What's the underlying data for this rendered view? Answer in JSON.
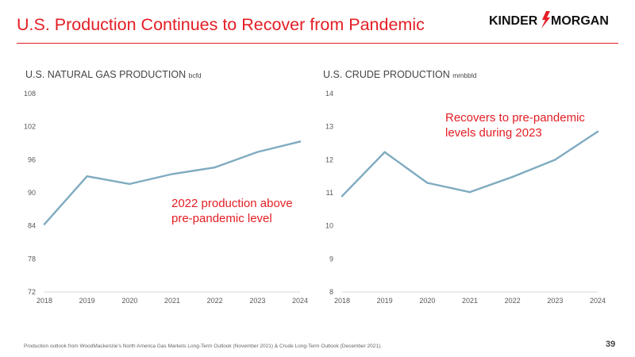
{
  "slide": {
    "title": "U.S. Production Continues to Recover from Pandemic",
    "logo_left": "KINDER",
    "logo_right": "MORGAN",
    "footnote": "Production outlook from WoodMackenzie’s North America Gas Markets Long-Term Outlook (November 2021) & Crude Long-Term Outlook (December 2021).",
    "page_number": "39",
    "accent_color": "#e31e24",
    "line_color": "#7fabc0"
  },
  "chart_data": [
    {
      "type": "line",
      "title": "U.S. NATURAL GAS PRODUCTION",
      "title_unit": "bcfd",
      "x": [
        "2018",
        "2019",
        "2020",
        "2021",
        "2022",
        "2023",
        "2024"
      ],
      "series": [
        {
          "values": [
            84.3,
            93.0,
            91.6,
            93.4,
            94.6,
            97.4,
            99.3
          ]
        }
      ],
      "y_ticks": [
        "72",
        "78",
        "84",
        "90",
        "96",
        "102",
        "108"
      ],
      "ylim": [
        72,
        108
      ],
      "grid": false,
      "annotation": [
        "2022 production above",
        "pre-pandemic level"
      ]
    },
    {
      "type": "line",
      "title": "U.S. CRUDE PRODUCTION",
      "title_unit": "mmbbld",
      "x": [
        "2018",
        "2019",
        "2020",
        "2021",
        "2022",
        "2023",
        "2024"
      ],
      "series": [
        {
          "values": [
            10.9,
            12.23,
            11.3,
            11.02,
            11.48,
            12.0,
            12.85
          ]
        }
      ],
      "y_ticks": [
        "8",
        "9",
        "10",
        "11",
        "12",
        "13",
        "14"
      ],
      "ylim": [
        8,
        14
      ],
      "grid": false,
      "annotation": [
        "Recovers to pre-pandemic",
        "levels during 2023"
      ]
    }
  ]
}
